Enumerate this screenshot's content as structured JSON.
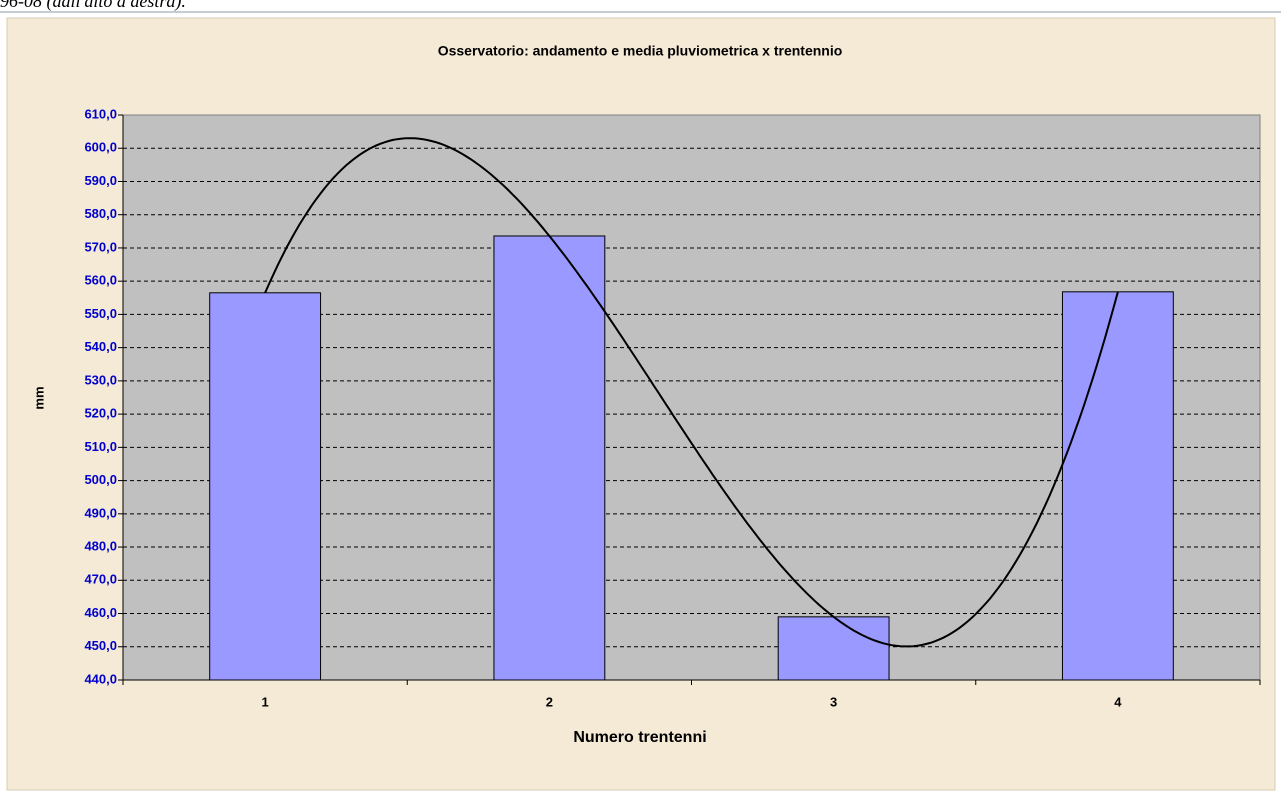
{
  "header_text": "96-08 (dall'alto a destra).",
  "chart_data": {
    "type": "bar",
    "title": "Osservatorio: andamento e media pluviometrica x trentennio",
    "x_label": "Numero trentenni",
    "y_label": "mm",
    "categories": [
      "1",
      "2",
      "3",
      "4"
    ],
    "values": [
      556.5,
      573.6,
      459.0,
      556.8
    ],
    "color": "#9999ff",
    "trendline": {
      "type": "polynomial",
      "order": 3,
      "color": "#000000"
    },
    "ylim": [
      440,
      610
    ],
    "yticks": [
      {
        "value": 440,
        "label": "440,0"
      },
      {
        "value": 450,
        "label": "450,0"
      },
      {
        "value": 460,
        "label": "460,0"
      },
      {
        "value": 470,
        "label": "470,0"
      },
      {
        "value": 480,
        "label": "480,0"
      },
      {
        "value": 490,
        "label": "490,0"
      },
      {
        "value": 500,
        "label": "500,0"
      },
      {
        "value": 510,
        "label": "510,0"
      },
      {
        "value": 520,
        "label": "520,0"
      },
      {
        "value": 530,
        "label": "530,0"
      },
      {
        "value": 540,
        "label": "540,0"
      },
      {
        "value": 550,
        "label": "550,0"
      },
      {
        "value": 560,
        "label": "560,0"
      },
      {
        "value": 570,
        "label": "570,0"
      },
      {
        "value": 580,
        "label": "580,0"
      },
      {
        "value": 590,
        "label": "590,0"
      },
      {
        "value": 600,
        "label": "600,0"
      },
      {
        "value": 610,
        "label": "610,0"
      }
    ],
    "grid": true
  }
}
